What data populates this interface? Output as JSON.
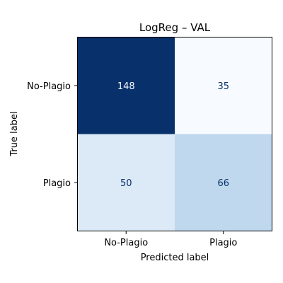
{
  "chart_data": {
    "type": "heatmap",
    "title": "LogReg – VAL",
    "xlabel": "Predicted label",
    "ylabel": "True label",
    "x_categories": [
      "No-Plagio",
      "Plagio"
    ],
    "y_categories": [
      "No-Plagio",
      "Plagio"
    ],
    "values": [
      [
        148,
        35
      ],
      [
        50,
        66
      ]
    ],
    "colormap": "Blues",
    "colors": {
      "cells": [
        [
          "#08306b",
          "#f7fbff"
        ],
        [
          "#dce9f6",
          "#bfd8ed"
        ]
      ],
      "label_light": "#f7fbff",
      "label_dark": "#08306b"
    }
  }
}
